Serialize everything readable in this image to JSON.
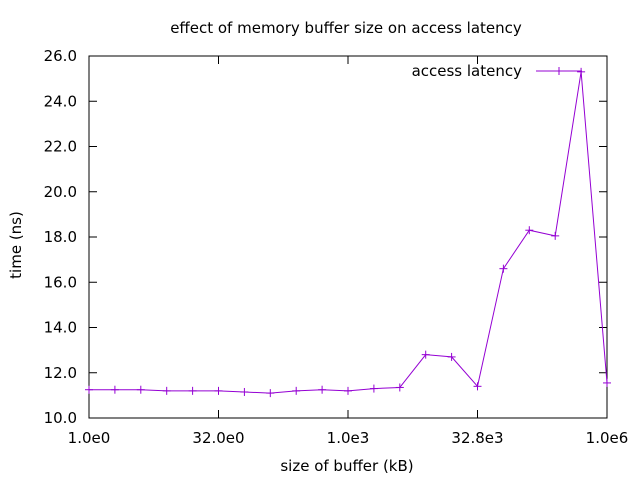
{
  "chart_data": {
    "type": "line",
    "title": "effect of memory buffer size on access latency",
    "xlabel": "size of buffer (kB)",
    "ylabel": "time (ns)",
    "x_scale": "log2",
    "xlim": [
      1,
      1048576
    ],
    "ylim": [
      10.0,
      26.0
    ],
    "grid": false,
    "legend_position": "top-right",
    "x_ticks": [
      {
        "value": 1,
        "label": "1.0e0"
      },
      {
        "value": 32,
        "label": "32.0e0"
      },
      {
        "value": 1024,
        "label": "1.0e3"
      },
      {
        "value": 32768,
        "label": "32.8e3"
      },
      {
        "value": 1048576,
        "label": "1.0e6"
      }
    ],
    "y_ticks": [
      {
        "value": 10,
        "label": "10.0"
      },
      {
        "value": 12,
        "label": "12.0"
      },
      {
        "value": 14,
        "label": "14.0"
      },
      {
        "value": 16,
        "label": "16.0"
      },
      {
        "value": 18,
        "label": "18.0"
      },
      {
        "value": 20,
        "label": "20.0"
      },
      {
        "value": 22,
        "label": "22.0"
      },
      {
        "value": 24,
        "label": "24.0"
      },
      {
        "value": 26,
        "label": "26.0"
      }
    ],
    "series": [
      {
        "name": "access latency",
        "color": "#9400d3",
        "x": [
          1,
          2,
          4,
          8,
          16,
          32,
          64,
          128,
          256,
          512,
          1024,
          2048,
          4096,
          8192,
          16384,
          32768,
          65536,
          131072,
          262144,
          524288,
          1048576
        ],
        "values": [
          11.25,
          11.25,
          11.25,
          11.2,
          11.2,
          11.2,
          11.15,
          11.1,
          11.2,
          11.25,
          11.2,
          11.3,
          11.35,
          12.8,
          12.7,
          11.4,
          16.6,
          18.3,
          18.05,
          25.3,
          11.55
        ]
      }
    ]
  }
}
